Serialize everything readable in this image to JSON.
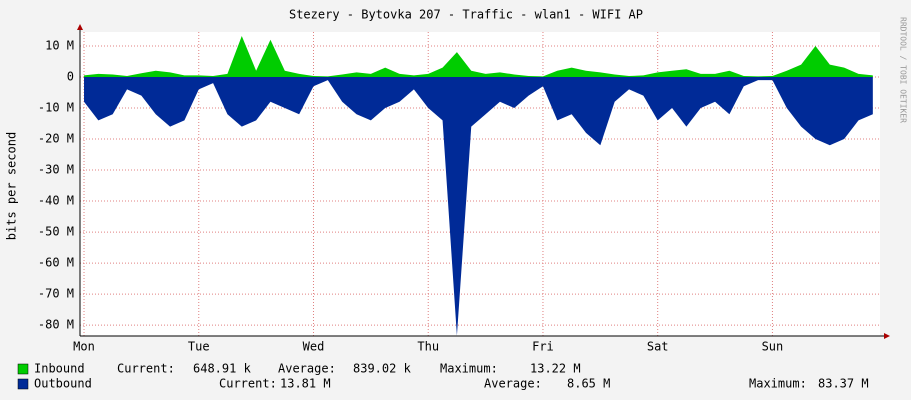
{
  "chart_data": {
    "type": "area",
    "title": "Stezery - Bytovka 207 - Traffic - wlan1 - WIFI AP",
    "y_label": "bits per second",
    "watermark": "RRDTOOL / TOBI OETIKER",
    "x": [
      0,
      3,
      6,
      9,
      12,
      15,
      18,
      21,
      24,
      27,
      30,
      33,
      36,
      39,
      42,
      45,
      48,
      51,
      54,
      57,
      60,
      63,
      66,
      69,
      72,
      75,
      78,
      81,
      84,
      87,
      90,
      93,
      96,
      99,
      102,
      105,
      108,
      111,
      114,
      117,
      120,
      123,
      126,
      129,
      132,
      135,
      138,
      141,
      144,
      147,
      150,
      153,
      156,
      159,
      162,
      165
    ],
    "xlim": [
      -0.84,
      166.5
    ],
    "xticks": [
      {
        "value": 0,
        "label": "Mon"
      },
      {
        "value": 24,
        "label": "Tue"
      },
      {
        "value": 48,
        "label": "Wed"
      },
      {
        "value": 72,
        "label": "Thu"
      },
      {
        "value": 96,
        "label": "Fri"
      },
      {
        "value": 120,
        "label": "Sat"
      },
      {
        "value": 144,
        "label": "Sun"
      }
    ],
    "ylim": [
      -83.5,
      14.5
    ],
    "yticks": [
      {
        "value": 10,
        "label": "10 M"
      },
      0,
      {
        "value": -10,
        "label": "-10 M"
      },
      {
        "value": -20,
        "label": "-20 M"
      },
      {
        "value": -30,
        "label": "-30 M"
      },
      {
        "value": -40,
        "label": "-40 M"
      },
      {
        "value": -50,
        "label": "-50 M"
      },
      {
        "value": -60,
        "label": "-60 M"
      },
      {
        "value": -70,
        "label": "-70 M"
      },
      {
        "value": -80,
        "label": "-80 M"
      }
    ],
    "grid": true,
    "series": [
      {
        "name": "Outbound",
        "color": "#002a97",
        "values": [
          -8,
          -14,
          -12,
          -4,
          -6,
          -12,
          -16,
          -14,
          -4,
          -2,
          -12,
          -16,
          -14,
          -8,
          -10,
          -12,
          -3,
          -1,
          -8,
          -12,
          -14,
          -10,
          -8,
          -4,
          -10,
          -14,
          -83.37,
          -16,
          -12,
          -8,
          -10,
          -6,
          -3,
          -14,
          -12,
          -18,
          -22,
          -8,
          -4,
          -6,
          -14,
          -10,
          -16,
          -10,
          -8,
          -12,
          -3,
          -1,
          -1,
          -10,
          -16,
          -20,
          -22,
          -20,
          -14,
          -12
        ],
        "stats": [
          {
            "label": "Current:",
            "value": "13.81 M"
          },
          {
            "label": "Average:",
            "value": "8.65 M"
          },
          {
            "label": "Maximum:",
            "value": "83.37 M"
          }
        ]
      },
      {
        "name": "Inbound",
        "color": "#00cc00",
        "values": [
          0.5,
          1,
          0.8,
          0.3,
          1.2,
          2,
          1.5,
          0.5,
          0.5,
          0.3,
          1,
          13.22,
          2,
          12,
          2,
          1,
          0.3,
          0.2,
          0.8,
          1.5,
          1,
          3,
          1,
          0.5,
          1,
          3,
          8,
          2,
          1,
          1.5,
          0.8,
          0.3,
          0.2,
          2,
          3,
          2,
          1.5,
          0.8,
          0.3,
          0.5,
          1.5,
          2,
          2.5,
          1,
          1,
          2,
          0.3,
          0.2,
          0.3,
          2,
          4,
          10,
          4,
          3,
          1,
          0.5
        ],
        "stats": [
          {
            "label": "Current:",
            "value": "648.91 k"
          },
          {
            "label": "Average:",
            "value": "839.02 k"
          },
          {
            "label": "Maximum:",
            "value": "13.22 M"
          }
        ]
      }
    ]
  }
}
